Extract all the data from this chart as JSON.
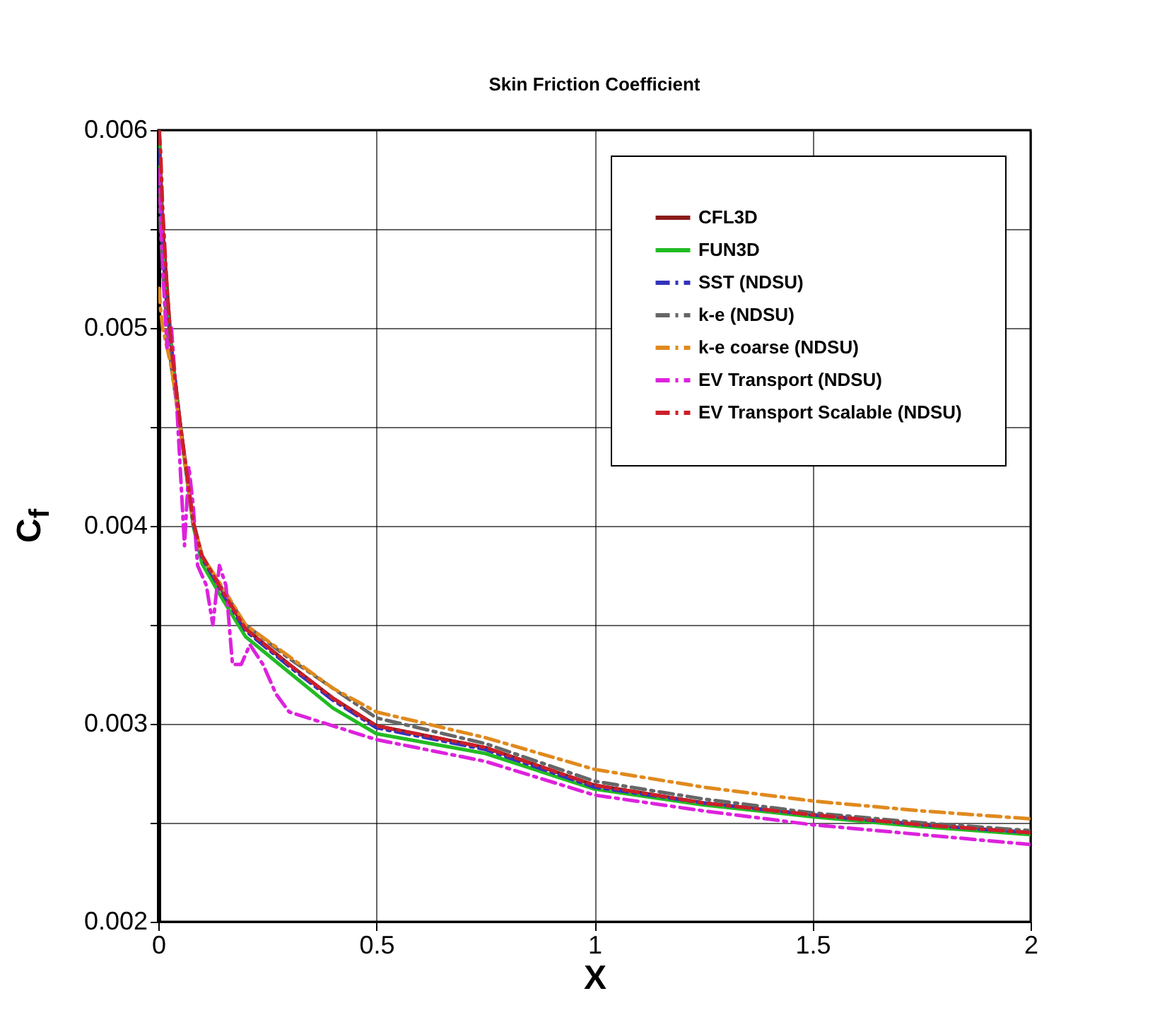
{
  "chart_data": {
    "type": "line",
    "title": "Skin Friction Coefficient",
    "xlabel": "X",
    "ylabel": "C$_{f}$",
    "xlim": [
      0,
      2
    ],
    "xticks": [
      0,
      0.5,
      1,
      1.5,
      2
    ],
    "ylim": [
      0.002,
      0.006
    ],
    "yticks": [
      0.002,
      {
        "value": 0.0025,
        "label": null
      },
      0.003,
      {
        "value": 0.0035,
        "label": null
      },
      0.004,
      {
        "value": 0.0045,
        "label": null
      },
      0.005,
      {
        "value": 0.0055,
        "label": null
      },
      0.006
    ],
    "grid": true,
    "legend": "top right",
    "x": [
      0.002,
      0.005,
      0.01,
      0.02,
      0.03,
      0.05,
      0.08,
      0.1,
      0.15,
      0.2,
      0.3,
      0.4,
      0.5,
      0.75,
      1,
      1.25,
      1.5,
      1.75,
      2
    ],
    "series": [
      {
        "name": "CFL3D",
        "color": "#8b1a1a",
        "line_style": "solid",
        "values": [
          0.006,
          0.0058,
          0.0055,
          0.0052,
          0.0049,
          0.00452,
          0.00402,
          0.00385,
          0.00366,
          0.00348,
          0.0033,
          0.00313,
          0.00299,
          0.00288,
          0.00269,
          0.0026,
          0.00254,
          0.00249,
          0.00245
        ]
      },
      {
        "name": "FUN3D",
        "color": "#22bb22",
        "line_style": "solid",
        "values": [
          0.006,
          0.0057,
          0.0054,
          0.0051,
          0.0049,
          0.0045,
          0.004,
          0.00381,
          0.00362,
          0.00344,
          0.00326,
          0.00308,
          0.00295,
          0.00285,
          0.00267,
          0.00259,
          0.00253,
          0.00248,
          0.00244
        ]
      },
      {
        "name": "SST (NDSU)",
        "color": "#3333bb",
        "line_style": "dashed",
        "values": [
          0.0059,
          0.0057,
          0.0054,
          0.0051,
          0.0049,
          0.00451,
          0.00401,
          0.00384,
          0.00365,
          0.00347,
          0.00329,
          0.00312,
          0.00298,
          0.00287,
          0.00268,
          0.0026,
          0.00254,
          0.00249,
          0.00245
        ]
      },
      {
        "name": "k-e (NDSU)",
        "color": "#666666",
        "line_style": "dashed",
        "values": [
          0.0057,
          0.0055,
          0.0053,
          0.005,
          0.0048,
          0.0045,
          0.00402,
          0.00385,
          0.00367,
          0.0035,
          0.00333,
          0.00318,
          0.00303,
          0.0029,
          0.00271,
          0.00262,
          0.00255,
          0.0025,
          0.00246
        ]
      },
      {
        "name": "k-e coarse (NDSU)",
        "color": "#e08a1e",
        "line_style": "dashed",
        "values": [
          0.0052,
          0.0051,
          0.005,
          0.0049,
          0.0048,
          0.0045,
          0.00402,
          0.00385,
          0.00368,
          0.0035,
          0.00334,
          0.00318,
          0.00306,
          0.00293,
          0.00277,
          0.00268,
          0.00261,
          0.00256,
          0.00252
        ]
      },
      {
        "name": "EV Transport (NDSU)",
        "color": "#dd22dd",
        "line_style": "dashed",
        "x": [
          0.002,
          0.01,
          0.02,
          0.03,
          0.04,
          0.05,
          0.06,
          0.07,
          0.08,
          0.09,
          0.11,
          0.125,
          0.14,
          0.155,
          0.17,
          0.19,
          0.21,
          0.24,
          0.27,
          0.3,
          0.4,
          0.5,
          0.75,
          1,
          1.25,
          1.5,
          1.75,
          2
        ],
        "values": [
          0.0058,
          0.0053,
          0.0049,
          0.005,
          0.0047,
          0.0043,
          0.0039,
          0.0043,
          0.0041,
          0.0038,
          0.0037,
          0.0035,
          0.0038,
          0.0037,
          0.0033,
          0.0033,
          0.0034,
          0.0033,
          0.00315,
          0.00306,
          0.00299,
          0.00292,
          0.00281,
          0.00264,
          0.00256,
          0.00249,
          0.00244,
          0.00239
        ]
      },
      {
        "name": "EV Transport Scalable (NDSU)",
        "color": "#cc1f2a",
        "line_style": "dashed",
        "values": [
          0.006,
          0.0059,
          0.0056,
          0.0052,
          0.0049,
          0.00452,
          0.00402,
          0.00385,
          0.00366,
          0.00348,
          0.0033,
          0.00313,
          0.00299,
          0.00288,
          0.00269,
          0.0026,
          0.00254,
          0.00249,
          0.00245
        ]
      }
    ]
  }
}
